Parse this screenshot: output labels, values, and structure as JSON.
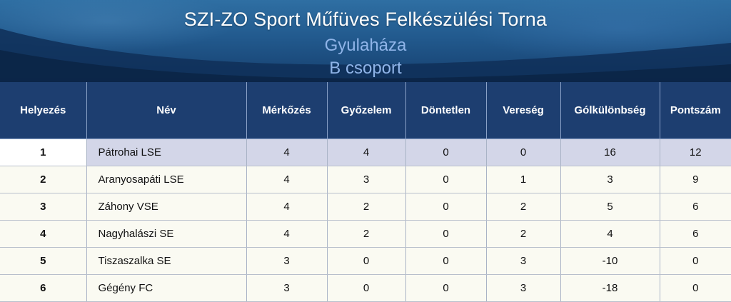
{
  "header": {
    "title": "SZI-ZO Sport Műfüves Felkészülési Torna",
    "location": "Gyulaháza",
    "group": "B csoport"
  },
  "table": {
    "columns": [
      "Helyezés",
      "Név",
      "Mérkőzés",
      "Győzelem",
      "Döntetlen",
      "Vereség",
      "Gólkülönbség",
      "Pontszám"
    ],
    "rows": [
      [
        "1",
        "Pátrohai LSE",
        "4",
        "4",
        "0",
        "0",
        "16",
        "12"
      ],
      [
        "2",
        "Aranyosapáti LSE",
        "4",
        "3",
        "0",
        "1",
        "3",
        "9"
      ],
      [
        "3",
        "Záhony VSE",
        "4",
        "2",
        "0",
        "2",
        "5",
        "6"
      ],
      [
        "4",
        "Nagyhalászi SE",
        "4",
        "2",
        "0",
        "2",
        "4",
        "6"
      ],
      [
        "5",
        "Tiszaszalka SE",
        "3",
        "0",
        "0",
        "3",
        "-10",
        "0"
      ],
      [
        "6",
        "Gégény FC",
        "3",
        "0",
        "0",
        "3",
        "-18",
        "0"
      ]
    ]
  },
  "colors": {
    "header_bg": "#1d3e70",
    "first_row_bg": "#d3d6e8",
    "row_bg": "#fafaf2",
    "subtitle": "#8fb4e8"
  }
}
